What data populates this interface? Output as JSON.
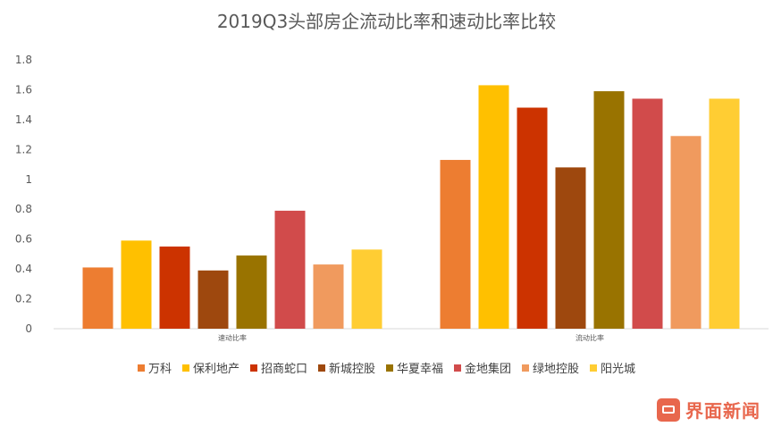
{
  "chart_data": {
    "type": "bar",
    "title": "2019Q3头部房企流动比率和速动比率比较",
    "categories": [
      "速动比率",
      "流动比率"
    ],
    "ylim": [
      0,
      1.8
    ],
    "yticks": [
      "0",
      "0.2",
      "0.4",
      "0.6",
      "0.8",
      "1",
      "1.2",
      "1.4",
      "1.6",
      "1.8"
    ],
    "grid": false,
    "legend_position": "bottom",
    "series": [
      {
        "name": "万科",
        "color": "#ED7D31",
        "values": [
          0.41,
          1.13
        ]
      },
      {
        "name": "保利地产",
        "color": "#FFC000",
        "values": [
          0.59,
          1.63
        ]
      },
      {
        "name": "招商蛇口",
        "color": "#CC3300",
        "values": [
          0.55,
          1.48
        ]
      },
      {
        "name": "新城控股",
        "color": "#9E480E",
        "values": [
          0.39,
          1.08
        ]
      },
      {
        "name": "华夏幸福",
        "color": "#997300",
        "values": [
          0.49,
          1.59
        ]
      },
      {
        "name": "金地集团",
        "color": "#D14B4B",
        "values": [
          0.79,
          1.54
        ]
      },
      {
        "name": "绿地控股",
        "color": "#F09A5E",
        "values": [
          0.43,
          1.29
        ]
      },
      {
        "name": "阳光城",
        "color": "#FFCD33",
        "values": [
          0.53,
          1.54
        ]
      }
    ]
  },
  "watermark": {
    "text": "界面新闻",
    "icon": "jiemian-logo-icon",
    "color": "#E8674D"
  }
}
